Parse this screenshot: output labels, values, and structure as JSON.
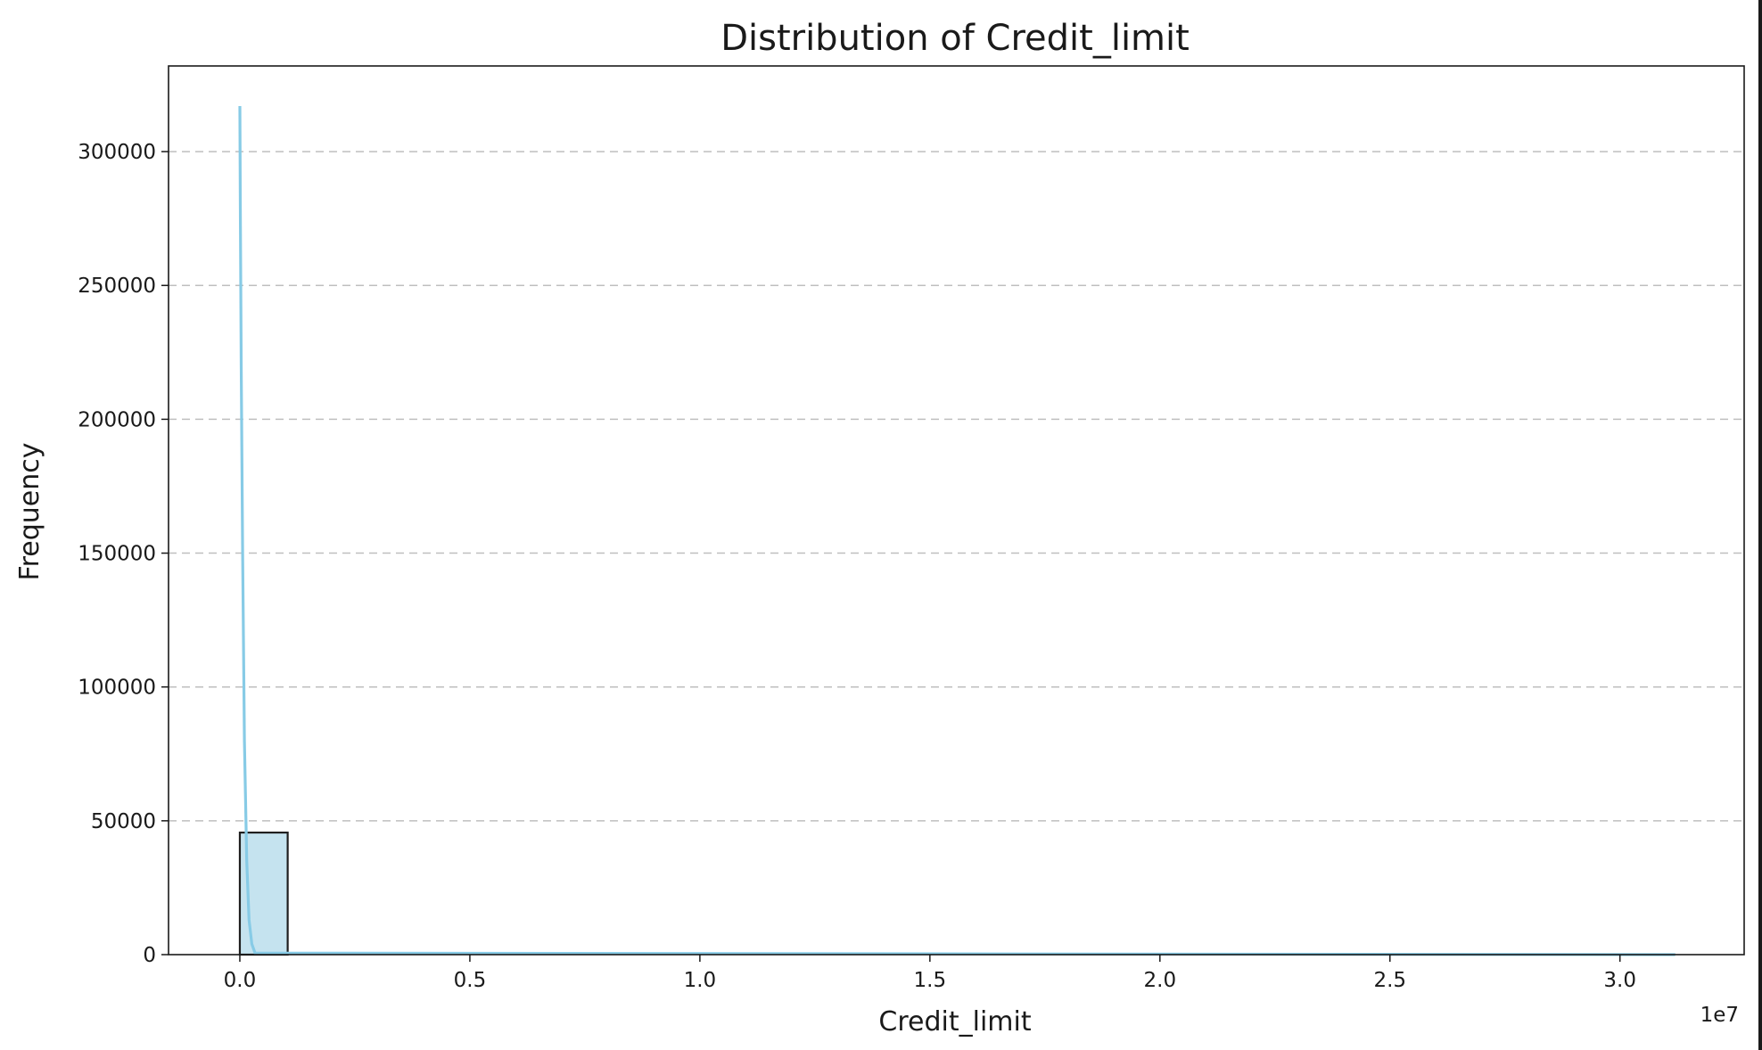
{
  "chart_data": {
    "type": "bar",
    "title": "Distribution of Credit_limit",
    "xlabel": "Credit_limit",
    "ylabel": "Frequency",
    "x_offset_label": "1e7",
    "x_scale_factor": 10000000,
    "xlim": [
      -1550000,
      32700000
    ],
    "ylim": [
      0,
      332000
    ],
    "xticks": [
      0,
      5000000,
      10000000,
      15000000,
      20000000,
      25000000,
      30000000
    ],
    "xtick_labels": [
      "0.0",
      "0.5",
      "1.0",
      "1.5",
      "2.0",
      "2.5",
      "3.0"
    ],
    "yticks": [
      0,
      50000,
      100000,
      150000,
      200000,
      250000,
      300000
    ],
    "ytick_labels": [
      "0",
      "50000",
      "100000",
      "150000",
      "200000",
      "250000",
      "300000"
    ],
    "grid": "y",
    "bin_edges_range": [
      0,
      31200000
    ],
    "bins": [
      {
        "x0": 0,
        "x1": 1040000,
        "count": 45600
      }
    ],
    "kde": {
      "x": [
        0,
        10000,
        30000,
        60000,
        100000,
        150000,
        200000,
        260000,
        330000
      ],
      "y": [
        317000,
        280000,
        220000,
        150000,
        80000,
        35000,
        13000,
        4000,
        600
      ]
    },
    "colors": {
      "bar_fill": "#c5e3ef",
      "bar_edge": "#1f1f1f",
      "kde_line": "#87cbe6",
      "grid": "#bfbfbf"
    }
  }
}
